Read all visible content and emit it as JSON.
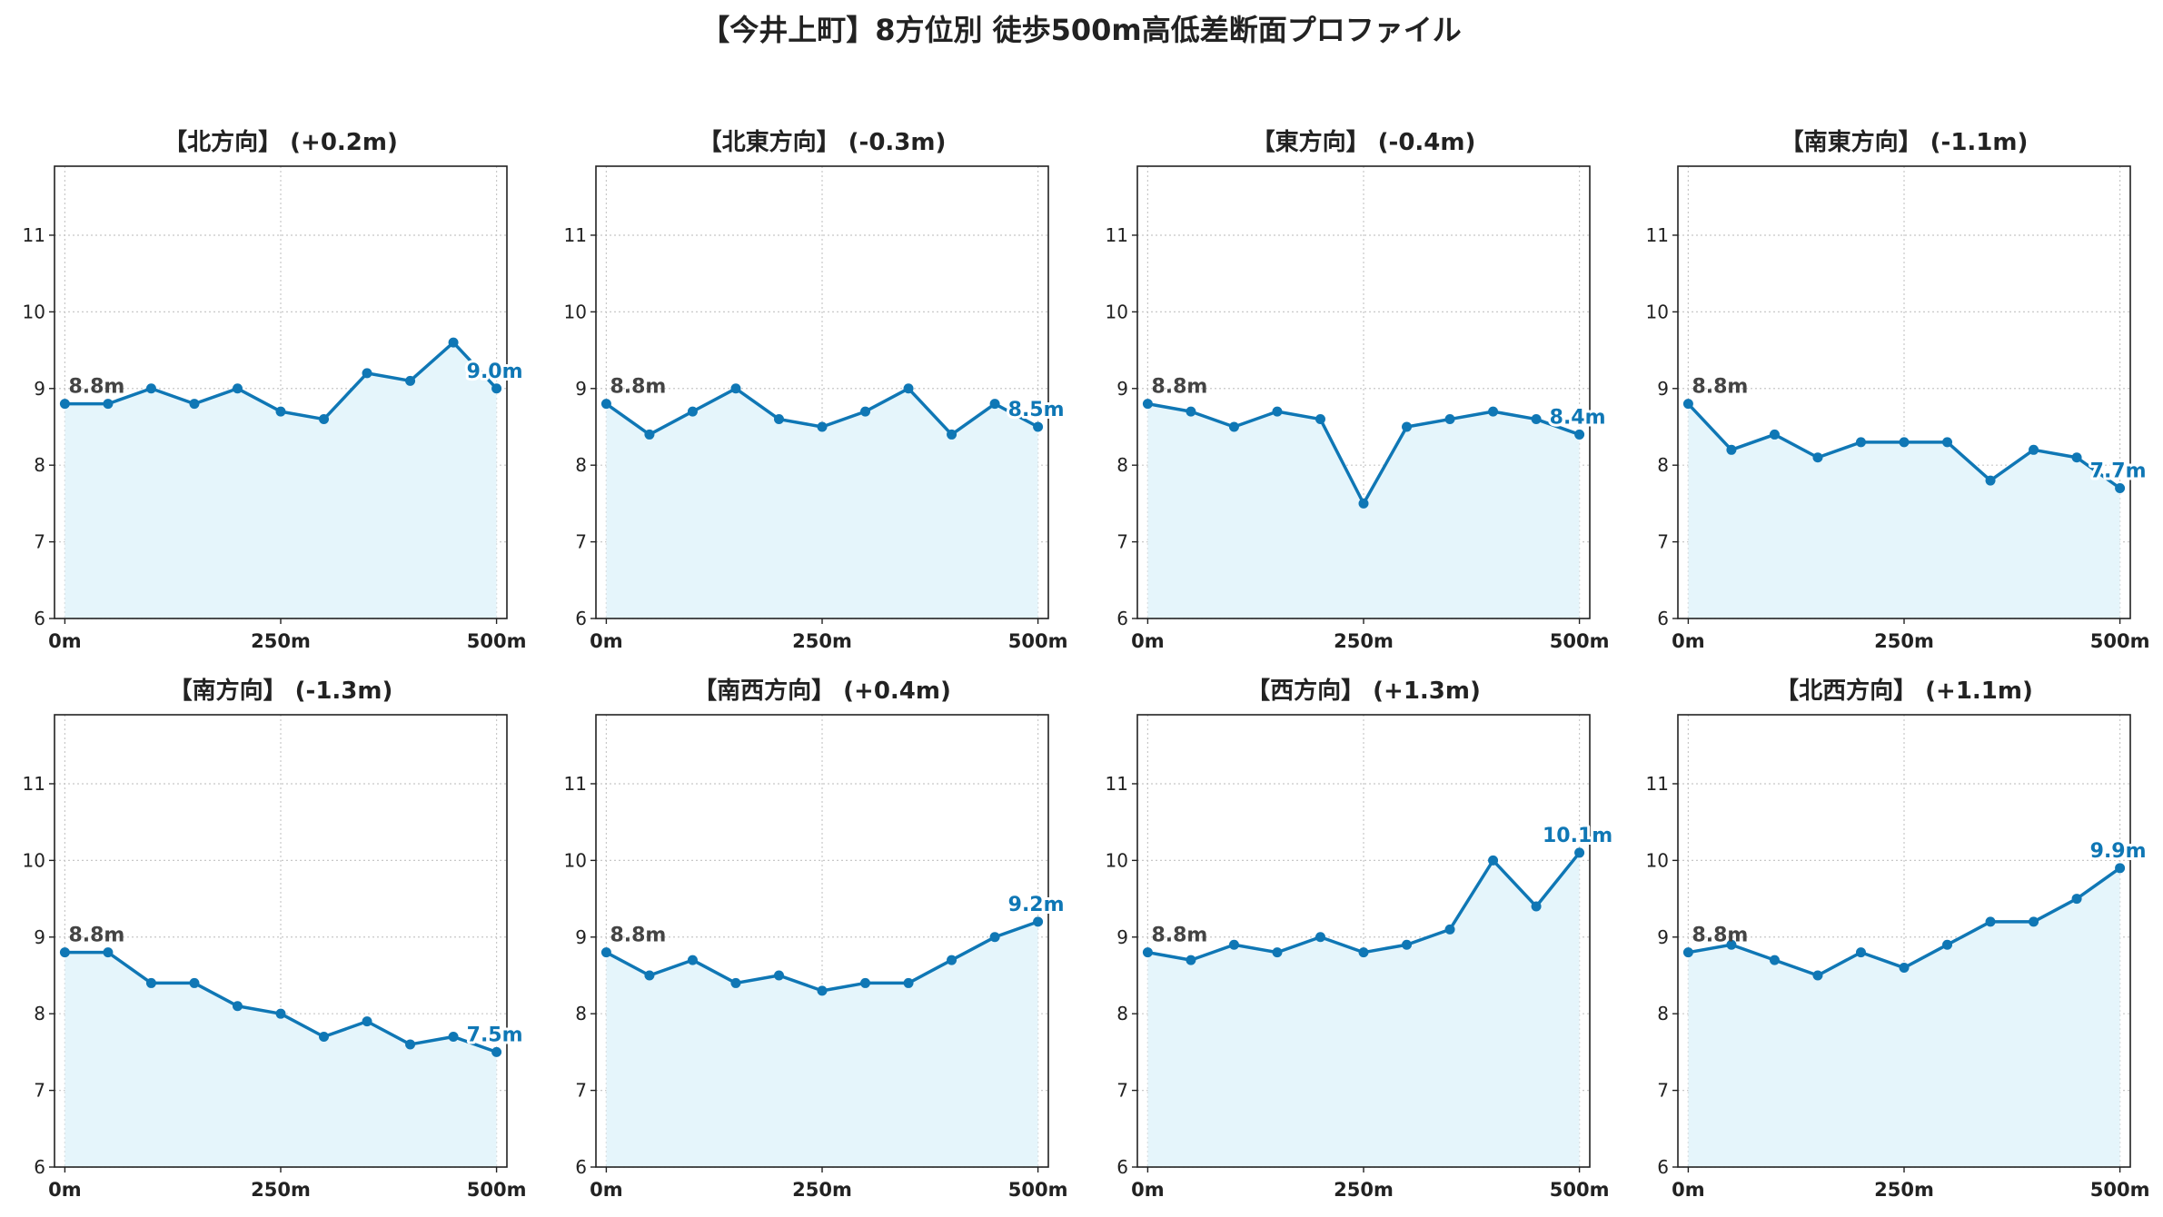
{
  "title": "【今井上町】8方位別 徒歩500m高低差断面プロファイル",
  "colors": {
    "line": "#0f77b5",
    "fill": "#e5f5fb",
    "grid": "#c8c8c8",
    "axis": "#222222",
    "start_label": "#444444"
  },
  "chart_data": [
    {
      "type": "area",
      "title": "【北方向】 (+0.2m)",
      "x": [
        0,
        50,
        100,
        150,
        200,
        250,
        300,
        350,
        400,
        450,
        500
      ],
      "values": [
        8.8,
        8.8,
        9.0,
        8.8,
        9.0,
        8.7,
        8.6,
        9.2,
        9.1,
        9.6,
        9.0
      ],
      "start_label": "8.8m",
      "end_label": "9.0m",
      "xticks": [
        "0m",
        "250m",
        "500m"
      ],
      "yticks": [
        "6",
        "7",
        "8",
        "9",
        "10",
        "11"
      ],
      "ylim": [
        6,
        11.9
      ],
      "xlim": [
        -12,
        512
      ],
      "grid": true
    },
    {
      "type": "area",
      "title": "【北東方向】 (-0.3m)",
      "x": [
        0,
        50,
        100,
        150,
        200,
        250,
        300,
        350,
        400,
        450,
        500
      ],
      "values": [
        8.8,
        8.4,
        8.7,
        9.0,
        8.6,
        8.5,
        8.7,
        9.0,
        8.4,
        8.8,
        8.5
      ],
      "start_label": "8.8m",
      "end_label": "8.5m",
      "xticks": [
        "0m",
        "250m",
        "500m"
      ],
      "yticks": [
        "6",
        "7",
        "8",
        "9",
        "10",
        "11"
      ],
      "ylim": [
        6,
        11.9
      ],
      "xlim": [
        -12,
        512
      ],
      "grid": true
    },
    {
      "type": "area",
      "title": "【東方向】 (-0.4m)",
      "x": [
        0,
        50,
        100,
        150,
        200,
        250,
        300,
        350,
        400,
        450,
        500
      ],
      "values": [
        8.8,
        8.7,
        8.5,
        8.7,
        8.6,
        7.5,
        8.5,
        8.6,
        8.7,
        8.6,
        8.4
      ],
      "start_label": "8.8m",
      "end_label": "8.4m",
      "xticks": [
        "0m",
        "250m",
        "500m"
      ],
      "yticks": [
        "6",
        "7",
        "8",
        "9",
        "10",
        "11"
      ],
      "ylim": [
        6,
        11.9
      ],
      "xlim": [
        -12,
        512
      ],
      "grid": true
    },
    {
      "type": "area",
      "title": "【南東方向】 (-1.1m)",
      "x": [
        0,
        50,
        100,
        150,
        200,
        250,
        300,
        350,
        400,
        450,
        500
      ],
      "values": [
        8.8,
        8.2,
        8.4,
        8.1,
        8.3,
        8.3,
        8.3,
        7.8,
        8.2,
        8.1,
        7.7
      ],
      "start_label": "8.8m",
      "end_label": "7.7m",
      "xticks": [
        "0m",
        "250m",
        "500m"
      ],
      "yticks": [
        "6",
        "7",
        "8",
        "9",
        "10",
        "11"
      ],
      "ylim": [
        6,
        11.9
      ],
      "xlim": [
        -12,
        512
      ],
      "grid": true
    },
    {
      "type": "area",
      "title": "【南方向】 (-1.3m)",
      "x": [
        0,
        50,
        100,
        150,
        200,
        250,
        300,
        350,
        400,
        450,
        500
      ],
      "values": [
        8.8,
        8.8,
        8.4,
        8.4,
        8.1,
        8.0,
        7.7,
        7.9,
        7.6,
        7.7,
        7.5
      ],
      "start_label": "8.8m",
      "end_label": "7.5m",
      "xticks": [
        "0m",
        "250m",
        "500m"
      ],
      "yticks": [
        "6",
        "7",
        "8",
        "9",
        "10",
        "11"
      ],
      "ylim": [
        6,
        11.9
      ],
      "xlim": [
        -12,
        512
      ],
      "grid": true
    },
    {
      "type": "area",
      "title": "【南西方向】 (+0.4m)",
      "x": [
        0,
        50,
        100,
        150,
        200,
        250,
        300,
        350,
        400,
        450,
        500
      ],
      "values": [
        8.8,
        8.5,
        8.7,
        8.4,
        8.5,
        8.3,
        8.4,
        8.4,
        8.7,
        9.0,
        9.2
      ],
      "start_label": "8.8m",
      "end_label": "9.2m",
      "xticks": [
        "0m",
        "250m",
        "500m"
      ],
      "yticks": [
        "6",
        "7",
        "8",
        "9",
        "10",
        "11"
      ],
      "ylim": [
        6,
        11.9
      ],
      "xlim": [
        -12,
        512
      ],
      "grid": true
    },
    {
      "type": "area",
      "title": "【西方向】 (+1.3m)",
      "x": [
        0,
        50,
        100,
        150,
        200,
        250,
        300,
        350,
        400,
        450,
        500
      ],
      "values": [
        8.8,
        8.7,
        8.9,
        8.8,
        9.0,
        8.8,
        8.9,
        9.1,
        10.0,
        9.4,
        10.1
      ],
      "start_label": "8.8m",
      "end_label": "10.1m",
      "xticks": [
        "0m",
        "250m",
        "500m"
      ],
      "yticks": [
        "6",
        "7",
        "8",
        "9",
        "10",
        "11"
      ],
      "ylim": [
        6,
        11.9
      ],
      "xlim": [
        -12,
        512
      ],
      "grid": true
    },
    {
      "type": "area",
      "title": "【北西方向】 (+1.1m)",
      "x": [
        0,
        50,
        100,
        150,
        200,
        250,
        300,
        350,
        400,
        450,
        500
      ],
      "values": [
        8.8,
        8.9,
        8.7,
        8.5,
        8.8,
        8.6,
        8.9,
        9.2,
        9.2,
        9.5,
        9.9
      ],
      "start_label": "8.8m",
      "end_label": "9.9m",
      "xticks": [
        "0m",
        "250m",
        "500m"
      ],
      "yticks": [
        "6",
        "7",
        "8",
        "9",
        "10",
        "11"
      ],
      "ylim": [
        6,
        11.9
      ],
      "xlim": [
        -12,
        512
      ],
      "grid": true
    }
  ]
}
